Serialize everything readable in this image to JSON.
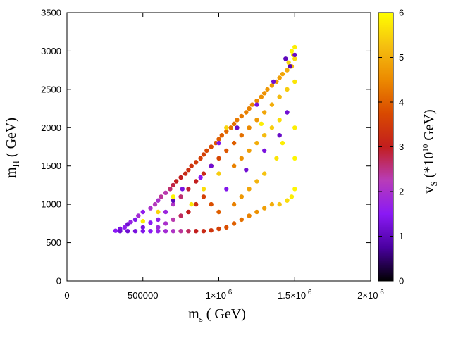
{
  "chart_data": {
    "type": "scatter",
    "title": "",
    "xlabel": {
      "main": "m",
      "sub": "s",
      "rest": " ( GeV)"
    },
    "ylabel": {
      "main": "m",
      "sub": "H",
      "rest": " ( GeV)"
    },
    "xlim": [
      0,
      2000000
    ],
    "ylim": [
      0,
      3500
    ],
    "x_ticks": [
      {
        "value": 0,
        "base": "0",
        "exp": ""
      },
      {
        "value": 500000,
        "base": "500000",
        "exp": ""
      },
      {
        "value": 1000000,
        "base": "1×10",
        "exp": "6"
      },
      {
        "value": 1500000,
        "base": "1.5×10",
        "exp": "6"
      },
      {
        "value": 2000000,
        "base": "2×10",
        "exp": "6"
      }
    ],
    "y_ticks": [
      {
        "value": 0,
        "label": "0"
      },
      {
        "value": 500,
        "label": "500"
      },
      {
        "value": 1000,
        "label": "1000"
      },
      {
        "value": 1500,
        "label": "1500"
      },
      {
        "value": 2000,
        "label": "2000"
      },
      {
        "value": 2500,
        "label": "2500"
      },
      {
        "value": 3000,
        "label": "3000"
      },
      {
        "value": 3500,
        "label": "3500"
      }
    ],
    "colorbar": {
      "label": {
        "main": "v",
        "sub": "S",
        "rest1": " (*10",
        "sup": "10",
        "rest2": " GeV)"
      },
      "range": [
        0,
        6
      ],
      "ticks": [
        "0",
        "1",
        "2",
        "3",
        "4",
        "5",
        "6"
      ],
      "palette": [
        "#000000",
        "#4a00a0",
        "#8a19f5",
        "#b83cb8",
        "#c21e1e",
        "#d94a00",
        "#ec8a00",
        "#f5bf10",
        "#ffff00"
      ]
    },
    "grid": false,
    "legend": "none",
    "series": [
      {
        "points": [
          [
            320000,
            655,
            1.5
          ],
          [
            350000,
            680,
            1.3
          ],
          [
            380000,
            700,
            1.6
          ],
          [
            400000,
            740,
            1.2
          ],
          [
            420000,
            770,
            1.7
          ],
          [
            450000,
            800,
            1.4
          ],
          [
            470000,
            850,
            1.9
          ],
          [
            500000,
            900,
            1.6
          ],
          [
            500000,
            700,
            1.3
          ],
          [
            550000,
            950,
            2.0
          ],
          [
            550000,
            760,
            1.5
          ],
          [
            580000,
            1000,
            2.2
          ],
          [
            600000,
            1050,
            2.0
          ],
          [
            600000,
            800,
            1.6
          ],
          [
            620000,
            1100,
            2.4
          ],
          [
            650000,
            1150,
            2.3
          ],
          [
            650000,
            900,
            1.8
          ],
          [
            680000,
            1200,
            2.6
          ],
          [
            700000,
            1250,
            2.8
          ],
          [
            700000,
            1000,
            2.1
          ],
          [
            720000,
            1300,
            3.0
          ],
          [
            750000,
            1350,
            3.0
          ],
          [
            750000,
            1100,
            2.6
          ],
          [
            780000,
            1400,
            3.2
          ],
          [
            800000,
            1450,
            3.3
          ],
          [
            800000,
            1200,
            2.9
          ],
          [
            820000,
            1500,
            3.4
          ],
          [
            850000,
            1550,
            3.5
          ],
          [
            850000,
            1300,
            3.0
          ],
          [
            880000,
            1600,
            3.6
          ],
          [
            900000,
            1650,
            3.6
          ],
          [
            900000,
            1400,
            3.2
          ],
          [
            920000,
            1700,
            3.7
          ],
          [
            950000,
            1750,
            3.8
          ],
          [
            950000,
            1500,
            3.5
          ],
          [
            980000,
            1800,
            3.9
          ],
          [
            1000000,
            1850,
            4.0
          ],
          [
            1000000,
            1600,
            3.7
          ],
          [
            1020000,
            1900,
            4.0
          ],
          [
            1050000,
            1950,
            4.1
          ],
          [
            1050000,
            1700,
            3.9
          ],
          [
            1080000,
            2000,
            4.2
          ],
          [
            1100000,
            2050,
            4.2
          ],
          [
            1100000,
            1800,
            4.0
          ],
          [
            1120000,
            2100,
            4.3
          ],
          [
            1150000,
            2150,
            4.3
          ],
          [
            1150000,
            1900,
            4.2
          ],
          [
            1180000,
            2200,
            4.4
          ],
          [
            1200000,
            2250,
            4.4
          ],
          [
            1200000,
            2000,
            4.5
          ],
          [
            1220000,
            2300,
            4.5
          ],
          [
            1250000,
            2350,
            4.5
          ],
          [
            1250000,
            2100,
            4.7
          ],
          [
            1280000,
            2400,
            4.6
          ],
          [
            1300000,
            2450,
            4.6
          ],
          [
            1300000,
            2200,
            4.9
          ],
          [
            1320000,
            2500,
            4.7
          ],
          [
            1350000,
            2550,
            4.7
          ],
          [
            1350000,
            2300,
            5.0
          ],
          [
            1380000,
            2600,
            4.8
          ],
          [
            1400000,
            2650,
            4.8
          ],
          [
            1400000,
            2400,
            5.2
          ],
          [
            1420000,
            2700,
            4.9
          ],
          [
            1450000,
            2750,
            5.0
          ],
          [
            1450000,
            2500,
            5.4
          ],
          [
            1480000,
            2800,
            5.1
          ],
          [
            1500000,
            2900,
            5.6
          ],
          [
            1500000,
            3050,
            5.8
          ],
          [
            1500000,
            2600,
            5.7
          ],
          [
            1480000,
            3000,
            5.9
          ],
          [
            1490000,
            2950,
            5.7
          ],
          [
            1460000,
            2850,
            5.5
          ],
          [
            1500000,
            2000,
            5.8
          ],
          [
            1500000,
            1600,
            5.9
          ],
          [
            1500000,
            1200,
            5.9
          ],
          [
            1480000,
            1100,
            5.8
          ],
          [
            1450000,
            1050,
            5.6
          ],
          [
            1400000,
            1000,
            5.3
          ],
          [
            1350000,
            1000,
            5.0
          ],
          [
            1300000,
            950,
            4.8
          ],
          [
            1250000,
            900,
            4.6
          ],
          [
            1200000,
            850,
            4.4
          ],
          [
            1150000,
            800,
            4.2
          ],
          [
            1100000,
            750,
            4.0
          ],
          [
            1050000,
            700,
            3.8
          ],
          [
            1000000,
            680,
            3.6
          ],
          [
            950000,
            660,
            3.4
          ],
          [
            900000,
            650,
            3.2
          ],
          [
            850000,
            650,
            3.0
          ],
          [
            800000,
            650,
            2.7
          ],
          [
            750000,
            650,
            2.4
          ],
          [
            700000,
            650,
            2.1
          ],
          [
            650000,
            650,
            1.9
          ],
          [
            600000,
            650,
            1.7
          ],
          [
            550000,
            650,
            1.5
          ],
          [
            500000,
            650,
            1.4
          ],
          [
            450000,
            650,
            1.3
          ],
          [
            400000,
            650,
            1.2
          ],
          [
            350000,
            650,
            1.2
          ],
          [
            1100000,
            1500,
            4.4
          ],
          [
            1150000,
            1600,
            4.6
          ],
          [
            1200000,
            1700,
            4.8
          ],
          [
            1250000,
            1800,
            5.0
          ],
          [
            1300000,
            1900,
            5.2
          ],
          [
            1350000,
            2000,
            5.4
          ],
          [
            1400000,
            2100,
            5.6
          ],
          [
            1420000,
            1800,
            5.8
          ],
          [
            1380000,
            1600,
            5.7
          ],
          [
            1300000,
            1400,
            5.3
          ],
          [
            1250000,
            1300,
            5.1
          ],
          [
            1200000,
            1200,
            4.9
          ],
          [
            1150000,
            1100,
            4.7
          ],
          [
            1100000,
            1000,
            4.4
          ],
          [
            1000000,
            900,
            4.0
          ],
          [
            950000,
            1000,
            3.8
          ],
          [
            900000,
            1100,
            3.6
          ],
          [
            850000,
            1000,
            3.3
          ],
          [
            800000,
            900,
            3.0
          ],
          [
            750000,
            850,
            2.7
          ],
          [
            700000,
            800,
            2.3
          ],
          [
            650000,
            750,
            2.0
          ],
          [
            600000,
            700,
            1.8
          ],
          [
            1440000,
            2900,
            1.0
          ],
          [
            1470000,
            2800,
            0.9
          ],
          [
            1500000,
            2950,
            1.1
          ],
          [
            1360000,
            2600,
            1.2
          ],
          [
            1250000,
            2300,
            1.3
          ],
          [
            1120000,
            2000,
            1.1
          ],
          [
            1000000,
            1800,
            1.4
          ],
          [
            950000,
            1500,
            1.2
          ],
          [
            880000,
            1350,
            1.5
          ],
          [
            760000,
            1200,
            1.3
          ],
          [
            700000,
            1050,
            1.0
          ],
          [
            1050000,
            1200,
            1.4
          ],
          [
            1180000,
            1450,
            1.2
          ],
          [
            1300000,
            1700,
            1.3
          ],
          [
            1400000,
            1900,
            1.1
          ],
          [
            1450000,
            2200,
            1.2
          ],
          [
            500000,
            780,
            5.8
          ],
          [
            600000,
            900,
            5.5
          ],
          [
            700000,
            1100,
            5.9
          ],
          [
            900000,
            1200,
            5.6
          ],
          [
            1000000,
            1400,
            5.4
          ],
          [
            820000,
            1000,
            5.7
          ],
          [
            1050000,
            2000,
            5.5
          ],
          [
            1280000,
            2050,
            5.8
          ]
        ]
      }
    ]
  }
}
